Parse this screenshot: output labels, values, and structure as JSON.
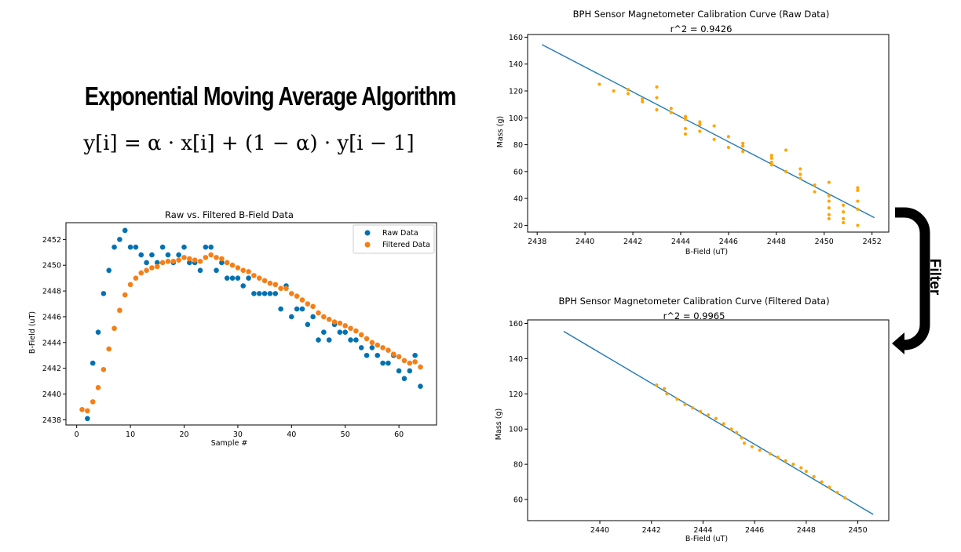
{
  "slide": {
    "title": "Exponential Moving Average Algorithm",
    "formula": "y[i] = α · x[i] + (1 − α) · y[i − 1]",
    "arrow_label": "Filter"
  },
  "colors": {
    "blue": "#0072b2",
    "orange": "#f57f17",
    "dot": "#ffa500",
    "line": "#1f7ab8"
  },
  "chart_data": [
    {
      "type": "scatter",
      "title": "Raw vs. Filtered B-Field Data",
      "xlabel": "Sample #",
      "ylabel": "B-Field (uT)",
      "xlim": [
        -2,
        67
      ],
      "ylim": [
        2437.6,
        2453.3
      ],
      "xticks": [
        0,
        10,
        20,
        30,
        40,
        50,
        60
      ],
      "yticks": [
        2438,
        2440,
        2442,
        2444,
        2446,
        2448,
        2450,
        2452
      ],
      "legend": "top-right",
      "series": [
        {
          "name": "Raw Data",
          "color": "#0072b2",
          "x": [
            2,
            3,
            4,
            5,
            6,
            7,
            8,
            9,
            10,
            11,
            12,
            13,
            14,
            15,
            16,
            17,
            18,
            19,
            20,
            21,
            22,
            23,
            24,
            25,
            26,
            27,
            28,
            29,
            30,
            31,
            32,
            33,
            34,
            35,
            36,
            37,
            38,
            39,
            40,
            41,
            42,
            43,
            44,
            45,
            46,
            47,
            48,
            49,
            50,
            51,
            52,
            53,
            54,
            55,
            56,
            57,
            58,
            59,
            60,
            61,
            62,
            63,
            64
          ],
          "y": [
            2438.1,
            2442.4,
            2444.8,
            2447.8,
            2449.6,
            2451.4,
            2452.0,
            2452.7,
            2451.4,
            2451.4,
            2450.8,
            2450.2,
            2450.8,
            2450.2,
            2451.4,
            2450.8,
            2450.2,
            2450.8,
            2451.4,
            2450.2,
            2450.2,
            2449.6,
            2451.4,
            2451.4,
            2449.6,
            2450.2,
            2449.0,
            2449.0,
            2449.0,
            2448.4,
            2449.0,
            2447.8,
            2447.8,
            2447.8,
            2447.8,
            2447.8,
            2446.6,
            2448.4,
            2446.0,
            2446.6,
            2446.6,
            2445.4,
            2446.0,
            2444.2,
            2444.8,
            2444.2,
            2445.4,
            2444.8,
            2444.8,
            2444.2,
            2444.2,
            2443.6,
            2443.0,
            2443.6,
            2443.0,
            2442.4,
            2442.4,
            2443.0,
            2441.8,
            2441.2,
            2441.8,
            2443.0,
            2440.6
          ]
        },
        {
          "name": "Filtered Data",
          "color": "#f57f17",
          "x": [
            1,
            2,
            3,
            4,
            5,
            6,
            7,
            8,
            9,
            10,
            11,
            12,
            13,
            14,
            15,
            16,
            17,
            18,
            19,
            20,
            21,
            22,
            23,
            24,
            25,
            26,
            27,
            28,
            29,
            30,
            31,
            32,
            33,
            34,
            35,
            36,
            37,
            38,
            39,
            40,
            41,
            42,
            43,
            44,
            45,
            46,
            47,
            48,
            49,
            50,
            51,
            52,
            53,
            54,
            55,
            56,
            57,
            58,
            59,
            60,
            61,
            62,
            63,
            64
          ],
          "y": [
            2438.8,
            2438.7,
            2439.4,
            2440.5,
            2441.9,
            2443.5,
            2445.1,
            2446.5,
            2447.7,
            2448.5,
            2449.0,
            2449.4,
            2449.6,
            2449.8,
            2449.9,
            2450.2,
            2450.3,
            2450.3,
            2450.4,
            2450.6,
            2450.5,
            2450.4,
            2450.3,
            2450.6,
            2450.8,
            2450.6,
            2450.5,
            2450.2,
            2450.0,
            2449.8,
            2449.6,
            2449.5,
            2449.2,
            2449.0,
            2448.8,
            2448.6,
            2448.5,
            2448.2,
            2448.2,
            2447.8,
            2447.6,
            2447.3,
            2447.0,
            2446.8,
            2446.3,
            2446.0,
            2445.8,
            2445.6,
            2445.5,
            2445.3,
            2445.1,
            2444.9,
            2444.6,
            2444.3,
            2444.0,
            2443.8,
            2443.6,
            2443.4,
            2443.1,
            2442.9,
            2442.6,
            2442.4,
            2442.5,
            2442.1
          ]
        }
      ]
    },
    {
      "type": "scatter",
      "title": "BPH Sensor Magnetometer Calibration Curve (Raw Data)",
      "subtitle": "r^2 = 0.9426",
      "xlabel": "B-Field (uT)",
      "ylabel": "Mass (g)",
      "xlim": [
        2437.6,
        2452.7
      ],
      "ylim": [
        15,
        162
      ],
      "xticks": [
        2438,
        2440,
        2442,
        2444,
        2446,
        2448,
        2450,
        2452
      ],
      "yticks": [
        20,
        40,
        60,
        80,
        100,
        120,
        140,
        160
      ],
      "fit_line": {
        "x": [
          2438.2,
          2452.1
        ],
        "y": [
          154.5,
          25.7
        ]
      },
      "points": {
        "x": [
          2440.6,
          2441.2,
          2441.8,
          2441.8,
          2442.4,
          2442.4,
          2443.0,
          2443.0,
          2443.0,
          2443.6,
          2443.6,
          2444.2,
          2444.2,
          2444.2,
          2444.2,
          2444.8,
          2444.8,
          2444.8,
          2445.4,
          2445.4,
          2446.0,
          2446.0,
          2446.6,
          2446.6,
          2446.6,
          2447.8,
          2447.8,
          2447.8,
          2447.8,
          2448.4,
          2448.4,
          2449.0,
          2449.0,
          2449.0,
          2449.6,
          2449.6,
          2450.2,
          2450.2,
          2450.2,
          2450.2,
          2450.2,
          2450.2,
          2450.8,
          2450.8,
          2450.8,
          2450.8,
          2451.4,
          2451.4,
          2451.4,
          2451.4,
          2451.4
        ],
        "y": [
          125,
          120,
          121,
          118,
          114,
          112,
          123,
          115,
          106,
          107,
          104,
          101,
          99,
          92,
          88,
          97,
          95,
          90,
          94,
          84,
          86,
          78,
          81,
          79,
          75,
          72,
          70,
          67,
          65,
          76,
          60,
          62,
          58,
          55,
          50,
          45,
          52,
          42,
          38,
          33,
          28,
          25,
          35,
          30,
          25,
          22,
          48,
          46,
          38,
          32,
          20
        ]
      }
    },
    {
      "type": "scatter",
      "title": "BPH Sensor Magnetometer Calibration Curve (Filtered Data)",
      "subtitle": "r^2 = 0.9965",
      "xlabel": "B-Field (uT)",
      "ylabel": "Mass (g)",
      "xlim": [
        2437.2,
        2451.2
      ],
      "ylim": [
        48,
        162
      ],
      "xticks": [
        2440,
        2442,
        2444,
        2446,
        2448,
        2450
      ],
      "yticks": [
        60,
        80,
        100,
        120,
        140,
        160
      ],
      "fit_line": {
        "x": [
          2438.6,
          2450.6
        ],
        "y": [
          155.5,
          51.5
        ]
      },
      "points": {
        "x": [
          2442.2,
          2442.5,
          2442.6,
          2443.0,
          2443.3,
          2443.6,
          2443.9,
          2444.2,
          2444.5,
          2444.8,
          2445.1,
          2445.3,
          2445.5,
          2445.6,
          2445.9,
          2446.2,
          2446.6,
          2446.9,
          2447.2,
          2447.5,
          2447.8,
          2448.0,
          2448.3,
          2448.6,
          2448.9,
          2449.2,
          2449.5
        ],
        "y": [
          125,
          123,
          120,
          117,
          114,
          112,
          110,
          108,
          106,
          103,
          100,
          98,
          95,
          92,
          90,
          88,
          86,
          84,
          82,
          80,
          78,
          76,
          73,
          70,
          67,
          64,
          61
        ]
      }
    }
  ]
}
